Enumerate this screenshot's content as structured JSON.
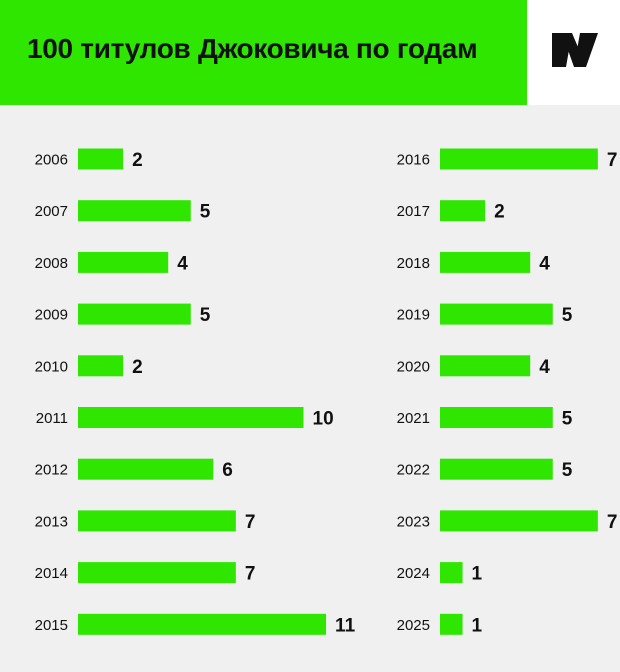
{
  "header": {
    "title": "100 титулов Джоковича по годам"
  },
  "logo": {
    "icon": "sports-ru-logo-icon"
  },
  "colors": {
    "accent": "#2ee600",
    "bar": "#2ee600",
    "text": "#111111",
    "background": "#f0f0f0"
  },
  "chart_data": {
    "type": "bar",
    "orientation": "horizontal",
    "title": "100 титулов Джоковича по годам",
    "categories": [
      "2006",
      "2007",
      "2008",
      "2009",
      "2010",
      "2011",
      "2012",
      "2013",
      "2014",
      "2015",
      "2016",
      "2017",
      "2018",
      "2019",
      "2020",
      "2021",
      "2022",
      "2023",
      "2024",
      "2025"
    ],
    "values": [
      2,
      5,
      4,
      5,
      2,
      10,
      6,
      7,
      7,
      11,
      7,
      2,
      4,
      5,
      4,
      5,
      5,
      7,
      1,
      1
    ],
    "grid": false,
    "legend": "none"
  }
}
